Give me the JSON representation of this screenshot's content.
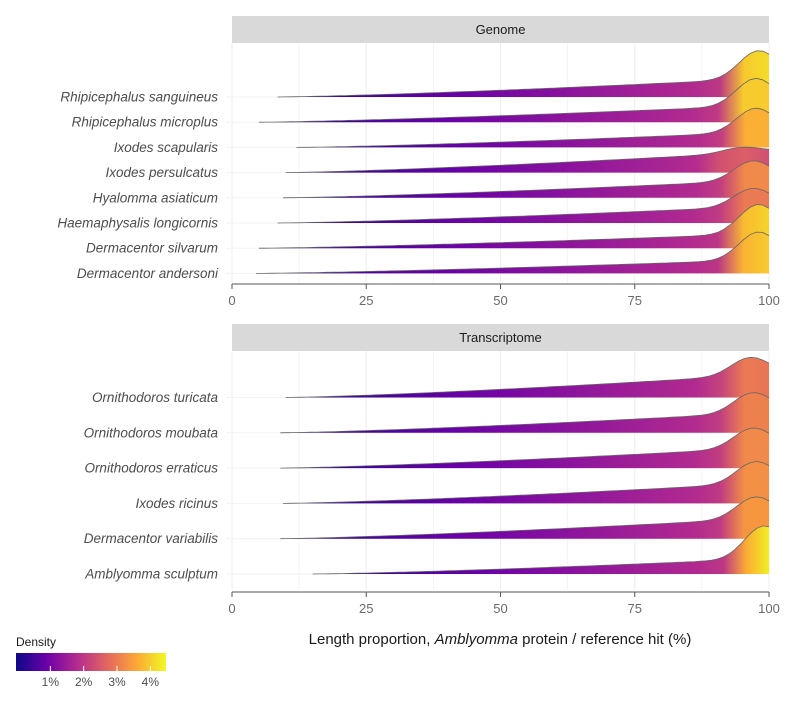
{
  "chart_data": {
    "type": "ridgeline",
    "xlabel_parts": [
      "Length proportion, ",
      "Amblyomma",
      " protein / reference hit (%)"
    ],
    "xlim": [
      0,
      100
    ],
    "xticks": [
      0,
      25,
      50,
      75,
      100
    ],
    "grid": true,
    "legend": {
      "title": "Density",
      "placement": "bottom-left",
      "ticks": [
        "1%",
        "2%",
        "3%",
        "4%"
      ],
      "tick_values": [
        1,
        2,
        3,
        4
      ],
      "range": [
        0,
        4.5
      ],
      "colormap": [
        "#0d0887",
        "#6a00a8",
        "#b12a90",
        "#e16462",
        "#fca636",
        "#f0f921"
      ]
    },
    "panels": [
      {
        "title": "Genome",
        "rows": [
          {
            "name": "Rhipicephalus sanguineus",
            "min": 8.5,
            "peak_x": 98,
            "peak_height": 1.0,
            "tail_height": 0.42,
            "peak_density": 4.2
          },
          {
            "name": "Rhipicephalus microplus",
            "min": 5,
            "peak_x": 97.5,
            "peak_height": 0.95,
            "tail_height": 0.38,
            "peak_density": 4.0
          },
          {
            "name": "Ixodes scapularis",
            "min": 12,
            "peak_x": 97.5,
            "peak_height": 0.85,
            "tail_height": 0.35,
            "peak_density": 3.7
          },
          {
            "name": "Ixodes persulcatus",
            "min": 10,
            "peak_x": 95,
            "peak_height": 0.55,
            "tail_height": 0.47,
            "peak_density": 2.6
          },
          {
            "name": "Hyalomma asiaticum",
            "min": 9.5,
            "peak_x": 97,
            "peak_height": 0.8,
            "tail_height": 0.4,
            "peak_density": 3.2
          },
          {
            "name": "Haemaphysalis longicornis",
            "min": 8.5,
            "peak_x": 97,
            "peak_height": 0.75,
            "tail_height": 0.38,
            "peak_density": 3.0
          },
          {
            "name": "Dermacentor silvarum",
            "min": 5,
            "peak_x": 98,
            "peak_height": 0.95,
            "tail_height": 0.33,
            "peak_density": 4.1
          },
          {
            "name": "Dermacentor andersoni",
            "min": 4.5,
            "peak_x": 98,
            "peak_height": 0.9,
            "tail_height": 0.31,
            "peak_density": 4.0
          }
        ]
      },
      {
        "title": "Transcriptome",
        "rows": [
          {
            "name": "Ornithodoros turicata",
            "min": 10,
            "peak_x": 96.5,
            "peak_height": 0.75,
            "tail_height": 0.45,
            "peak_density": 3.0
          },
          {
            "name": "Ornithodoros moubata",
            "min": 9,
            "peak_x": 97,
            "peak_height": 0.75,
            "tail_height": 0.4,
            "peak_density": 3.1
          },
          {
            "name": "Ornithodoros erraticus",
            "min": 9,
            "peak_x": 97,
            "peak_height": 0.75,
            "tail_height": 0.4,
            "peak_density": 3.2
          },
          {
            "name": "Ixodes ricinus",
            "min": 9.5,
            "peak_x": 97.5,
            "peak_height": 0.78,
            "tail_height": 0.4,
            "peak_density": 3.3
          },
          {
            "name": "Dermacentor variabilis",
            "min": 9,
            "peak_x": 97.5,
            "peak_height": 0.78,
            "tail_height": 0.4,
            "peak_density": 3.4
          },
          {
            "name": "Amblyomma sculptum",
            "min": 15,
            "peak_x": 99,
            "peak_height": 0.9,
            "tail_height": 0.3,
            "peak_density": 4.4
          }
        ]
      }
    ]
  }
}
